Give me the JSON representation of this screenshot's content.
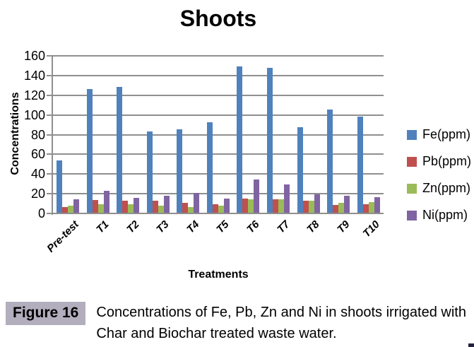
{
  "chart_data": {
    "type": "bar",
    "title": "Shoots",
    "xlabel": "Treatments",
    "ylabel": "Concentrations",
    "ylim": [
      0,
      160
    ],
    "ytick_step": 20,
    "grid": true,
    "legend_position": "right",
    "categories": [
      "Pre-test",
      "T1",
      "T2",
      "T3",
      "T4",
      "T5",
      "T6",
      "T7",
      "T8",
      "T9",
      "T10"
    ],
    "series": [
      {
        "name": "Fe(ppm)",
        "color": "#4F81BD",
        "values": [
          53,
          126,
          128,
          83,
          85,
          92,
          149,
          148,
          87,
          105,
          98
        ]
      },
      {
        "name": "Pb(ppm)",
        "color": "#C0504D",
        "values": [
          6,
          13,
          12,
          12,
          10,
          9,
          14.5,
          13.5,
          12,
          8,
          9
        ]
      },
      {
        "name": "Zn(ppm)",
        "color": "#9BBB59",
        "values": [
          7.5,
          9,
          8.5,
          7.5,
          6,
          7,
          14,
          13.5,
          12,
          10,
          11
        ]
      },
      {
        "name": "Ni(ppm)",
        "color": "#8064A2",
        "values": [
          13.5,
          22.5,
          15.5,
          17.5,
          20,
          14.5,
          34,
          28.5,
          18.5,
          17.5,
          16
        ]
      }
    ]
  },
  "caption": {
    "label": "Figure 16",
    "text": "Concentrations of Fe, Pb, Zn and Ni in shoots irrigated with Char and Biochar treated waste water."
  },
  "colors": {
    "gridline": "#8f8f8f",
    "caption_box": "#b3aebd",
    "background": "#ffffff"
  }
}
